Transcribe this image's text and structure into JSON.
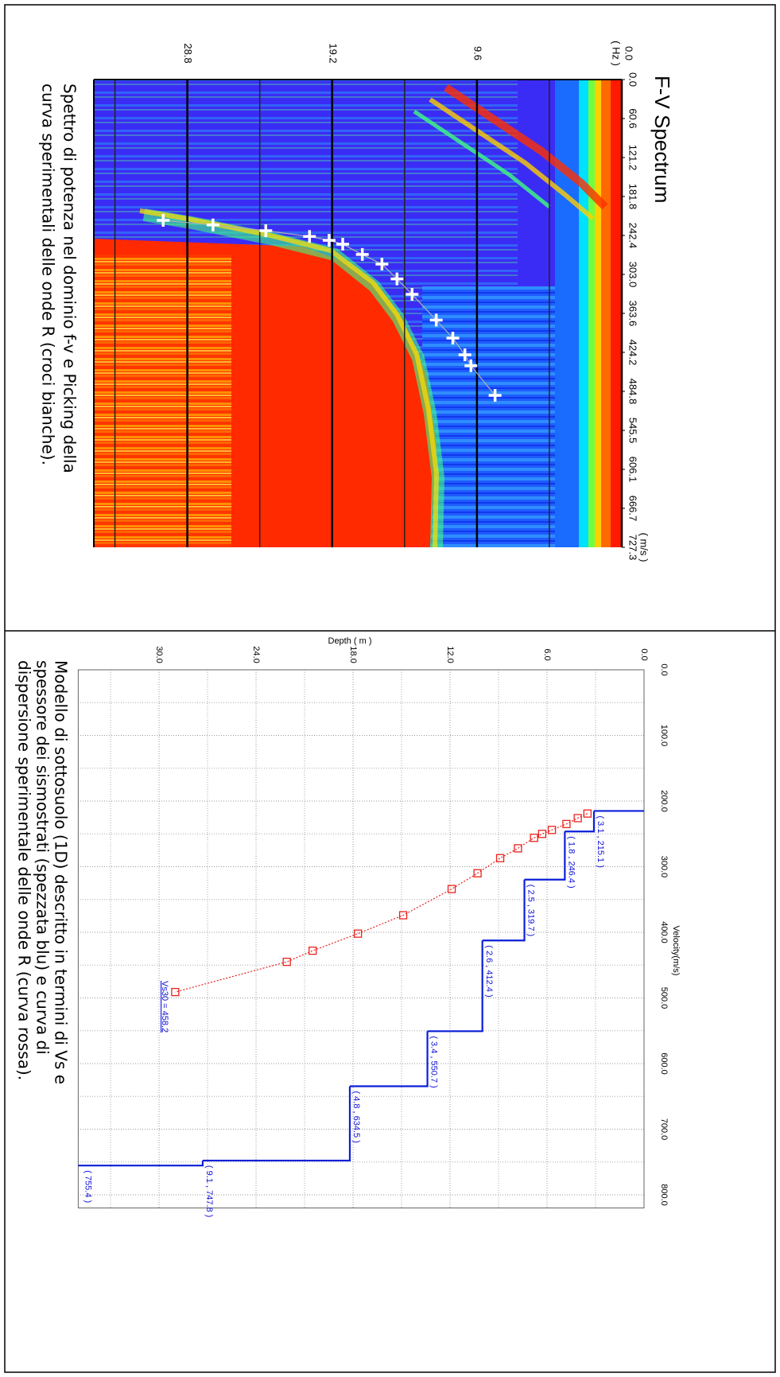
{
  "chart_data": [
    {
      "type": "scatter",
      "title": "F-V Spectrum",
      "caption": [
        "Spettro di potenza nel dominio f-v e Picking della",
        "curva sperimentali delle onde R (croci bianche)."
      ],
      "x_unit": "( m/s )",
      "y_unit": "( Hz )",
      "xlim": [
        0,
        727.3
      ],
      "ylim": [
        0,
        35
      ],
      "xticks": [
        {
          "value": 0,
          "label": "0.0"
        },
        60.6,
        121.2,
        181.8,
        242.4,
        {
          "value": 303,
          "label": "303.0"
        },
        363.6,
        424.2,
        484.8,
        545.5,
        606.1,
        666.7,
        727.3
      ],
      "yticks": [
        {
          "value": 0,
          "label": "0.0"
        },
        9.6,
        19.2,
        28.8
      ],
      "minor_yticks": [
        4.8,
        14.4,
        24,
        33.6
      ],
      "x": [
        219,
        226,
        235,
        244,
        250,
        256,
        272,
        287,
        310,
        334,
        374,
        402,
        428,
        445,
        491
      ],
      "values": [
        30.4,
        27.1,
        23.6,
        20.7,
        19.4,
        18.5,
        17.2,
        15.9,
        14.9,
        13.9,
        12.3,
        11.2,
        10.4,
        10.0,
        8.4
      ],
      "color": "#ffffff"
    },
    {
      "type": "line",
      "caption": [
        "Modello di sottosuolo (1D) descritto in termini di Vs e",
        "spessore dei sismostrati (spezzata blu) e curva di",
        "dispersione sperimentale delle onde R (curva rossa)."
      ],
      "x_label": "Velocity(m/s)",
      "y_label": "Depth ( m )",
      "xlim": [
        0,
        820
      ],
      "ylim": [
        0,
        35
      ],
      "xticks": [
        {
          "value": 0,
          "label": "0.0"
        },
        {
          "value": 100,
          "label": "100.0"
        },
        {
          "value": 200,
          "label": "200.0"
        },
        {
          "value": 300,
          "label": "300.0"
        },
        {
          "value": 400,
          "label": "400.0"
        },
        {
          "value": 500,
          "label": "500.0"
        },
        {
          "value": 600,
          "label": "600.0"
        },
        {
          "value": 700,
          "label": "700.0"
        },
        {
          "value": 800,
          "label": "800.0"
        }
      ],
      "yticks": [
        {
          "value": 0,
          "label": "0.0"
        },
        {
          "value": 6,
          "label": "6.0"
        },
        {
          "value": 12,
          "label": "12.0"
        },
        {
          "value": 18,
          "label": "18.0"
        },
        {
          "value": 24,
          "label": "24.0"
        },
        {
          "value": 30,
          "label": "30.0"
        }
      ],
      "minor_xticks": [
        50,
        150,
        250,
        350,
        450,
        550,
        650,
        750
      ],
      "minor_yticks": [
        3,
        9,
        15,
        21,
        27,
        33
      ],
      "grid": true,
      "profile": {
        "color": "#0a1fd8",
        "thickness": [
          3.1,
          1.8,
          2.5,
          2.6,
          3.4,
          4.8,
          9.1,
          null
        ],
        "values": [
          215.1,
          246.4,
          319.7,
          412.4,
          550.7,
          634.5,
          747.8,
          755.4
        ],
        "value_labels": [
          "( 3.1 , 215.1 )",
          "( 1.8 , 246.4 )",
          "( 2.5 , 319.7 )",
          "( 2.6 , 412.4 )",
          "( 3.4 , 550.7 )",
          "( 4.8 , 634.5 )",
          "( 9.1 , 747.8 )",
          "( 755.4 )"
        ]
      },
      "dispersion": {
        "color": "#e8231e",
        "x": [
          219,
          226,
          235,
          244,
          250,
          256,
          272,
          287,
          310,
          334,
          374,
          402,
          428,
          445,
          491
        ],
        "values": [
          3.5,
          4.1,
          4.8,
          5.7,
          6.3,
          6.8,
          7.8,
          8.9,
          10.3,
          11.9,
          14.9,
          17.7,
          20.5,
          22.1,
          29.0
        ]
      },
      "vs30": {
        "depth": 30,
        "value": 458.2,
        "label": "Vs30 = 458.2"
      }
    }
  ]
}
